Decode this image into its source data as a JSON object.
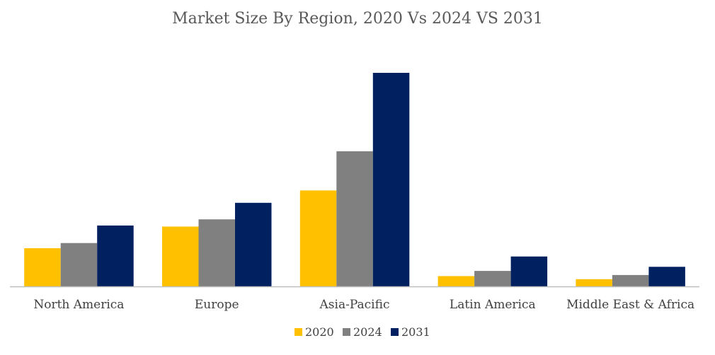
{
  "chart_data": {
    "type": "bar",
    "title": "Market Size By Region, 2020 Vs 2024 VS 2031",
    "categories": [
      "North America",
      "Europe",
      "Asia-Pacific",
      "Latin America",
      "Middle East & Africa"
    ],
    "series": [
      {
        "name": "2020",
        "color": "#FFC000",
        "values": [
          18.5,
          29,
          46.5,
          5,
          3.5
        ]
      },
      {
        "name": "2024",
        "color": "#808080",
        "values": [
          21,
          32.5,
          65.5,
          7.5,
          5.5
        ]
      },
      {
        "name": "2031",
        "color": "#002060",
        "values": [
          29.5,
          40.5,
          103.5,
          14.5,
          9.5
        ]
      }
    ],
    "xlabel": "",
    "ylabel": "",
    "ylim": [
      0,
      110
    ],
    "grid": false,
    "legend": "bottom-center",
    "axis_line_color": "#BFBFBF"
  }
}
